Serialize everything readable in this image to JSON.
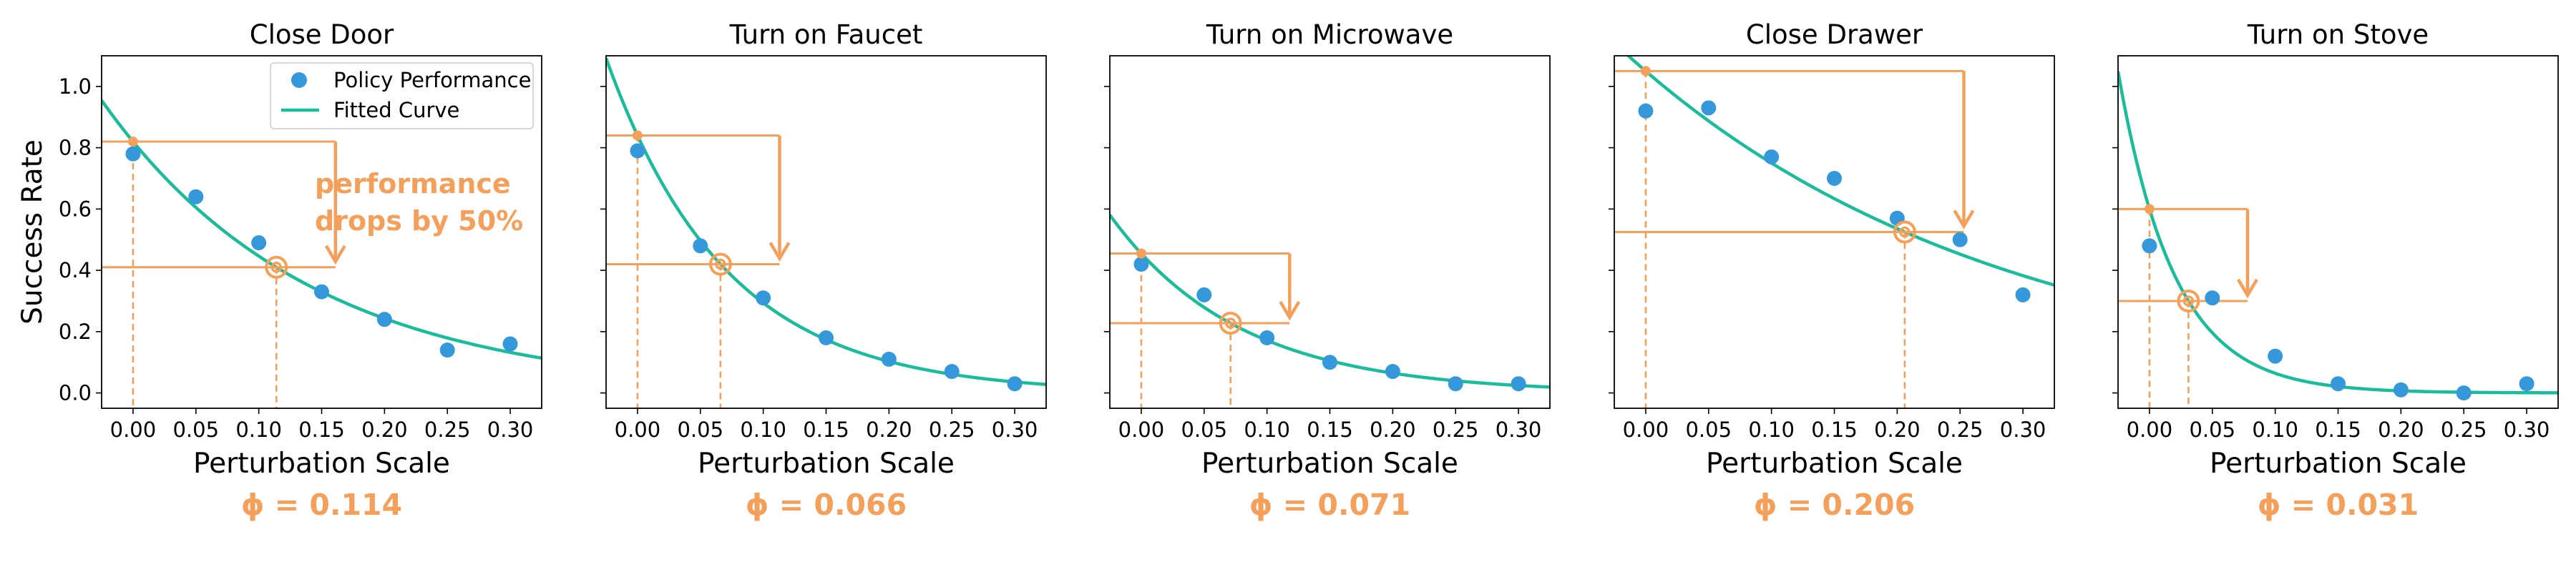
{
  "chart_data": [
    {
      "type": "scatter",
      "title": "Close Door",
      "xlabel": "Perturbation Scale",
      "ylabel": "Success Rate",
      "xlim": [
        -0.025,
        0.325
      ],
      "ylim": [
        -0.05,
        1.1
      ],
      "xticks": [
        0.0,
        0.05,
        0.1,
        0.15,
        0.2,
        0.25,
        0.3
      ],
      "xtick_labels": [
        "0.00",
        "0.05",
        "0.10",
        "0.15",
        "0.20",
        "0.25",
        "0.30"
      ],
      "yticks": [
        0.0,
        0.2,
        0.4,
        0.6,
        0.8,
        1.0
      ],
      "ytick_labels": [
        "0.0",
        "0.2",
        "0.4",
        "0.6",
        "0.8",
        "1.0"
      ],
      "series": [
        {
          "name": "Policy Performance",
          "x": [
            0.0,
            0.05,
            0.1,
            0.15,
            0.2,
            0.25,
            0.3
          ],
          "y": [
            0.78,
            0.64,
            0.49,
            0.33,
            0.24,
            0.14,
            0.16
          ]
        },
        {
          "name": "Fitted Curve",
          "type": "exp_decay",
          "a": 0.82,
          "phi": 0.114
        }
      ],
      "phi_label": "ϕ = 0.114",
      "annotation": "performance\ndrops by 50%",
      "legend": "top-right",
      "grid": false
    },
    {
      "type": "scatter",
      "title": "Turn on Faucet",
      "xlabel": "Perturbation Scale",
      "xlim": [
        -0.025,
        0.325
      ],
      "ylim": [
        -0.05,
        1.1
      ],
      "xticks": [
        0.0,
        0.05,
        0.1,
        0.15,
        0.2,
        0.25,
        0.3
      ],
      "xtick_labels": [
        "0.00",
        "0.05",
        "0.10",
        "0.15",
        "0.20",
        "0.25",
        "0.30"
      ],
      "series": [
        {
          "x": [
            0.0,
            0.05,
            0.1,
            0.15,
            0.2,
            0.25,
            0.3
          ],
          "y": [
            0.79,
            0.48,
            0.31,
            0.18,
            0.11,
            0.07,
            0.03
          ]
        },
        {
          "type": "exp_decay",
          "a": 0.84,
          "phi": 0.066
        }
      ],
      "phi_label": "ϕ = 0.066",
      "grid": false
    },
    {
      "type": "scatter",
      "title": "Turn on Microwave",
      "xlabel": "Perturbation Scale",
      "xlim": [
        -0.025,
        0.325
      ],
      "ylim": [
        -0.05,
        1.1
      ],
      "xticks": [
        0.0,
        0.05,
        0.1,
        0.15,
        0.2,
        0.25,
        0.3
      ],
      "xtick_labels": [
        "0.00",
        "0.05",
        "0.10",
        "0.15",
        "0.20",
        "0.25",
        "0.30"
      ],
      "series": [
        {
          "x": [
            0.0,
            0.05,
            0.1,
            0.15,
            0.2,
            0.25,
            0.3
          ],
          "y": [
            0.42,
            0.32,
            0.18,
            0.1,
            0.07,
            0.03,
            0.03
          ]
        },
        {
          "type": "exp_decay",
          "a": 0.455,
          "phi": 0.071
        }
      ],
      "phi_label": "ϕ = 0.071",
      "grid": false
    },
    {
      "type": "scatter",
      "title": "Close Drawer",
      "xlabel": "Perturbation Scale",
      "xlim": [
        -0.025,
        0.325
      ],
      "ylim": [
        -0.05,
        1.1
      ],
      "xticks": [
        0.0,
        0.05,
        0.1,
        0.15,
        0.2,
        0.25,
        0.3
      ],
      "xtick_labels": [
        "0.00",
        "0.05",
        "0.10",
        "0.15",
        "0.20",
        "0.25",
        "0.30"
      ],
      "series": [
        {
          "x": [
            0.0,
            0.05,
            0.1,
            0.15,
            0.2,
            0.25,
            0.3
          ],
          "y": [
            0.92,
            0.93,
            0.77,
            0.7,
            0.57,
            0.5,
            0.32
          ]
        },
        {
          "type": "exp_decay",
          "a": 1.05,
          "phi": 0.206
        }
      ],
      "phi_label": "ϕ = 0.206",
      "grid": false
    },
    {
      "type": "scatter",
      "title": "Turn on Stove",
      "xlabel": "Perturbation Scale",
      "xlim": [
        -0.025,
        0.325
      ],
      "ylim": [
        -0.05,
        1.1
      ],
      "xticks": [
        0.0,
        0.05,
        0.1,
        0.15,
        0.2,
        0.25,
        0.3
      ],
      "xtick_labels": [
        "0.00",
        "0.05",
        "0.10",
        "0.15",
        "0.20",
        "0.25",
        "0.30"
      ],
      "series": [
        {
          "x": [
            0.0,
            0.05,
            0.1,
            0.15,
            0.2,
            0.25,
            0.3
          ],
          "y": [
            0.48,
            0.31,
            0.12,
            0.03,
            0.01,
            0.0,
            0.03
          ]
        },
        {
          "type": "exp_decay",
          "a": 0.6,
          "phi": 0.031
        }
      ],
      "phi_label": "ϕ = 0.031",
      "grid": false
    }
  ],
  "colors": {
    "points": "#3498DB",
    "curve": "#1ABC9C",
    "highlight": "#F5A05A"
  }
}
